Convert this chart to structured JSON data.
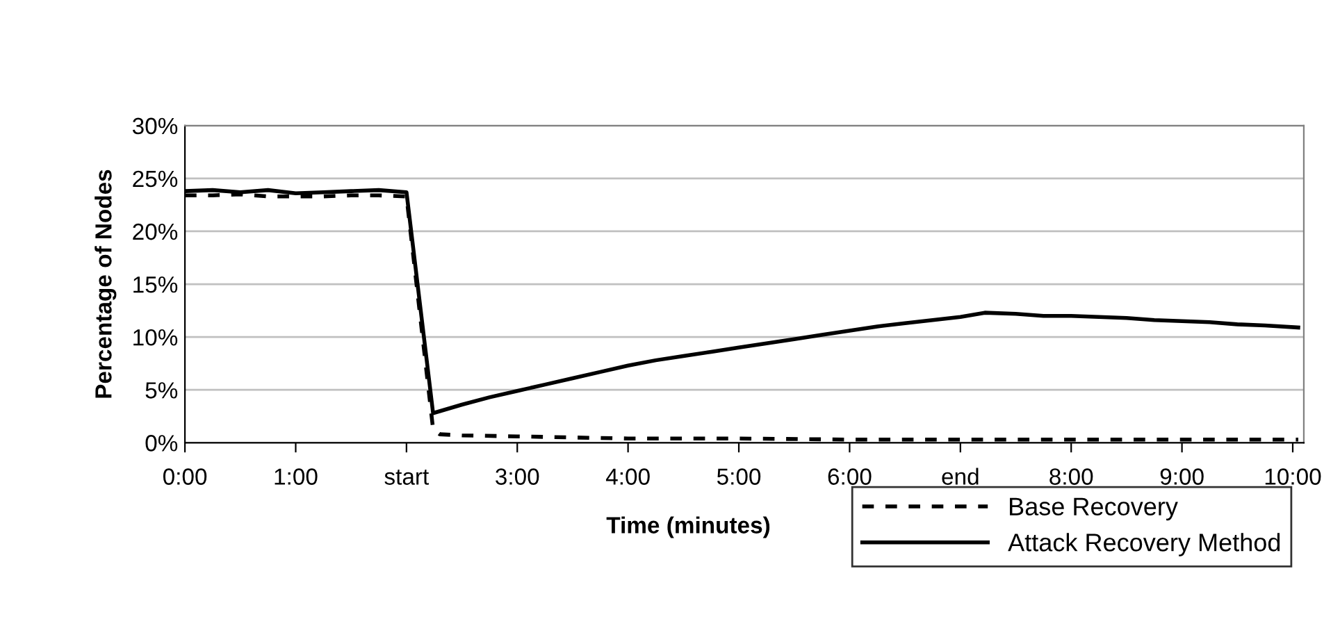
{
  "chart_data": {
    "type": "line",
    "xlabel": "Time (minutes)",
    "ylabel": "Percentage of Nodes",
    "xlim": [
      0,
      10.1
    ],
    "xticks": [
      {
        "value": 0,
        "label": "0:00"
      },
      {
        "value": 1,
        "label": "1:00"
      },
      {
        "value": 2,
        "label": "start"
      },
      {
        "value": 3,
        "label": "3:00"
      },
      {
        "value": 4,
        "label": "4:00"
      },
      {
        "value": 5,
        "label": "5:00"
      },
      {
        "value": 6,
        "label": "6:00"
      },
      {
        "value": 7,
        "label": "end"
      },
      {
        "value": 8,
        "label": "8:00"
      },
      {
        "value": 9,
        "label": "9:00"
      },
      {
        "value": 10,
        "label": "10:00"
      }
    ],
    "ylim": [
      0,
      30
    ],
    "yticks": [
      {
        "value": 0,
        "label": "0%"
      },
      {
        "value": 5,
        "label": "5%"
      },
      {
        "value": 10,
        "label": "10%"
      },
      {
        "value": 15,
        "label": "15%"
      },
      {
        "value": 20,
        "label": "20%"
      },
      {
        "value": 25,
        "label": "25%"
      },
      {
        "value": 30,
        "label": "30%"
      }
    ],
    "grid": "y",
    "legend": "bottom right",
    "marker": "none",
    "series": [
      {
        "name": "Base Recovery",
        "color": "#000000",
        "line_style": "dashed",
        "x": [
          0,
          0.25,
          0.5,
          0.75,
          1.0,
          1.25,
          1.5,
          1.75,
          2.0,
          2.24,
          2.3,
          2.5,
          3.0,
          3.5,
          4.0,
          5.0,
          6.0,
          7.0,
          8.0,
          9.0,
          10.05
        ],
        "values": [
          23.4,
          23.4,
          23.5,
          23.3,
          23.3,
          23.3,
          23.4,
          23.4,
          23.3,
          1.3,
          0.8,
          0.7,
          0.6,
          0.5,
          0.4,
          0.4,
          0.3,
          0.3,
          0.3,
          0.3,
          0.3
        ]
      },
      {
        "name": "Attack Recovery Method",
        "color": "#000000",
        "line_style": "solid",
        "x": [
          0,
          0.25,
          0.5,
          0.75,
          1.0,
          1.25,
          1.5,
          1.75,
          2.0,
          2.24,
          2.5,
          2.75,
          3.0,
          3.25,
          3.5,
          3.75,
          4.0,
          4.25,
          4.5,
          4.75,
          5.0,
          5.25,
          5.5,
          5.75,
          6.0,
          6.25,
          6.5,
          6.75,
          7.0,
          7.22,
          7.5,
          7.75,
          8.0,
          8.25,
          8.5,
          8.75,
          9.0,
          9.25,
          9.5,
          9.75,
          10.05
        ],
        "values": [
          23.8,
          23.9,
          23.7,
          23.9,
          23.6,
          23.7,
          23.8,
          23.9,
          23.7,
          2.8,
          3.6,
          4.3,
          4.9,
          5.5,
          6.1,
          6.7,
          7.3,
          7.8,
          8.2,
          8.6,
          9.0,
          9.4,
          9.8,
          10.2,
          10.6,
          11.0,
          11.3,
          11.6,
          11.9,
          12.3,
          12.2,
          12.0,
          12.0,
          11.9,
          11.8,
          11.6,
          11.5,
          11.4,
          11.2,
          11.1,
          10.9
        ]
      }
    ]
  }
}
